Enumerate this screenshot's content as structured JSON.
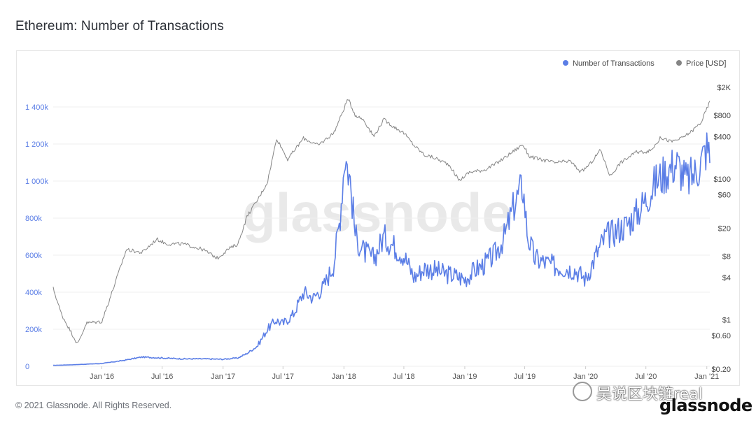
{
  "page": {
    "title": "Ethereum: Number of Transactions",
    "copyright": "© 2021 Glassnode. All Rights Reserved.",
    "watermark": "glassnode",
    "overlay_text": "吴说区块链real",
    "overlay_brand": "glassnode"
  },
  "chart_data": {
    "type": "line",
    "title": "Ethereum: Number of Transactions",
    "legend_position": "top-right",
    "grid": "horizontal",
    "x_range": [
      "2015-08-07",
      "2021-01-10"
    ],
    "x_ticks": [
      {
        "label": "Jan '16",
        "date": "2016-01-01"
      },
      {
        "label": "Jul '16",
        "date": "2016-07-01"
      },
      {
        "label": "Jan '17",
        "date": "2017-01-01"
      },
      {
        "label": "Jul '17",
        "date": "2017-07-01"
      },
      {
        "label": "Jan '18",
        "date": "2018-01-01"
      },
      {
        "label": "Jul '18",
        "date": "2018-07-01"
      },
      {
        "label": "Jan '19",
        "date": "2019-01-01"
      },
      {
        "label": "Jul '19",
        "date": "2019-07-01"
      },
      {
        "label": "Jan '20",
        "date": "2020-01-01"
      },
      {
        "label": "Jul '20",
        "date": "2020-07-01"
      },
      {
        "label": "Jan '21",
        "date": "2021-01-01"
      }
    ],
    "y_left": {
      "range": [
        0,
        1400000
      ],
      "ticks": [
        {
          "label": "0",
          "value": 0
        },
        {
          "label": "200k",
          "value": 200000
        },
        {
          "label": "400k",
          "value": 400000
        },
        {
          "label": "600k",
          "value": 600000
        },
        {
          "label": "800k",
          "value": 800000
        },
        {
          "label": "1 000k",
          "value": 1000000
        },
        {
          "label": "1 200k",
          "value": 1200000
        },
        {
          "label": "1 400k",
          "value": 1400000
        }
      ],
      "color": "#5b7ee6"
    },
    "y_right": {
      "scale": "log",
      "range": [
        0.2,
        2000
      ],
      "ticks": [
        {
          "label": "$0.20",
          "value": 0.2
        },
        {
          "label": "$0.60",
          "value": 0.6
        },
        {
          "label": "$1",
          "value": 1
        },
        {
          "label": "$4",
          "value": 4
        },
        {
          "label": "$8",
          "value": 8
        },
        {
          "label": "$20",
          "value": 20
        },
        {
          "label": "$60",
          "value": 60
        },
        {
          "label": "$100",
          "value": 100
        },
        {
          "label": "$400",
          "value": 400
        },
        {
          "label": "$800",
          "value": 800
        },
        {
          "label": "$2K",
          "value": 2000
        }
      ],
      "color": "#444444"
    },
    "series": [
      {
        "name": "Number of Transactions",
        "axis": "left",
        "color": "#5b7ee6",
        "x": [
          "2015-08-07",
          "2015-10-01",
          "2016-01-01",
          "2016-03-01",
          "2016-05-01",
          "2016-07-01",
          "2016-09-01",
          "2016-11-01",
          "2017-01-01",
          "2017-02-15",
          "2017-03-15",
          "2017-04-15",
          "2017-05-15",
          "2017-06-10",
          "2017-07-01",
          "2017-08-01",
          "2017-09-01",
          "2017-10-01",
          "2017-11-01",
          "2017-12-01",
          "2017-12-20",
          "2018-01-04",
          "2018-01-20",
          "2018-02-05",
          "2018-03-01",
          "2018-04-01",
          "2018-05-01",
          "2018-06-01",
          "2018-07-01",
          "2018-08-01",
          "2018-09-01",
          "2018-10-01",
          "2018-11-01",
          "2018-12-01",
          "2019-01-01",
          "2019-02-01",
          "2019-03-01",
          "2019-04-01",
          "2019-05-01",
          "2019-06-01",
          "2019-06-25",
          "2019-07-10",
          "2019-08-01",
          "2019-09-01",
          "2019-10-01",
          "2019-11-01",
          "2019-12-01",
          "2020-01-01",
          "2020-02-01",
          "2020-03-01",
          "2020-04-01",
          "2020-05-01",
          "2020-06-01",
          "2020-07-01",
          "2020-08-01",
          "2020-09-01",
          "2020-10-01",
          "2020-11-01",
          "2020-12-01",
          "2021-01-01",
          "2021-01-10"
        ],
        "values": [
          5000,
          8000,
          15000,
          30000,
          50000,
          45000,
          40000,
          40000,
          38000,
          45000,
          70000,
          110000,
          200000,
          250000,
          230000,
          280000,
          400000,
          370000,
          430000,
          550000,
          800000,
          1150000,
          1000000,
          700000,
          620000,
          580000,
          700000,
          650000,
          600000,
          480000,
          530000,
          520000,
          500000,
          490000,
          470000,
          520000,
          550000,
          600000,
          700000,
          880000,
          980000,
          700000,
          580000,
          560000,
          540000,
          530000,
          520000,
          470000,
          600000,
          700000,
          730000,
          760000,
          820000,
          900000,
          1000000,
          1050000,
          1100000,
          1000000,
          1050000,
          1180000,
          1130000
        ]
      },
      {
        "name": "Price [USD]",
        "axis": "right",
        "color": "#858585",
        "x": [
          "2015-08-07",
          "2015-09-01",
          "2015-10-20",
          "2015-11-15",
          "2016-01-01",
          "2016-02-01",
          "2016-03-15",
          "2016-05-01",
          "2016-06-15",
          "2016-07-15",
          "2016-09-01",
          "2016-11-01",
          "2016-12-15",
          "2017-01-15",
          "2017-02-15",
          "2017-03-15",
          "2017-04-15",
          "2017-05-15",
          "2017-06-12",
          "2017-07-15",
          "2017-09-01",
          "2017-10-15",
          "2017-12-01",
          "2017-12-20",
          "2018-01-13",
          "2018-02-05",
          "2018-03-01",
          "2018-04-01",
          "2018-05-01",
          "2018-06-01",
          "2018-07-01",
          "2018-08-01",
          "2018-09-01",
          "2018-10-01",
          "2018-11-15",
          "2018-12-15",
          "2019-01-15",
          "2019-03-01",
          "2019-04-01",
          "2019-05-01",
          "2019-06-25",
          "2019-07-15",
          "2019-08-15",
          "2019-10-01",
          "2019-11-15",
          "2019-12-18",
          "2020-01-15",
          "2020-02-15",
          "2020-03-15",
          "2020-04-15",
          "2020-06-01",
          "2020-07-15",
          "2020-08-15",
          "2020-09-15",
          "2020-10-15",
          "2020-11-15",
          "2020-12-15",
          "2021-01-10"
        ],
        "values": [
          2.8,
          1.2,
          0.45,
          0.9,
          0.95,
          2.5,
          10,
          9,
          14,
          12,
          12,
          10,
          7.5,
          10,
          12,
          30,
          50,
          90,
          380,
          190,
          380,
          300,
          450,
          720,
          1380,
          800,
          700,
          400,
          700,
          550,
          450,
          300,
          220,
          200,
          160,
          95,
          125,
          135,
          160,
          200,
          310,
          210,
          190,
          170,
          180,
          125,
          165,
          260,
          110,
          170,
          240,
          250,
          390,
          340,
          375,
          470,
          640,
          1250
        ]
      }
    ]
  }
}
